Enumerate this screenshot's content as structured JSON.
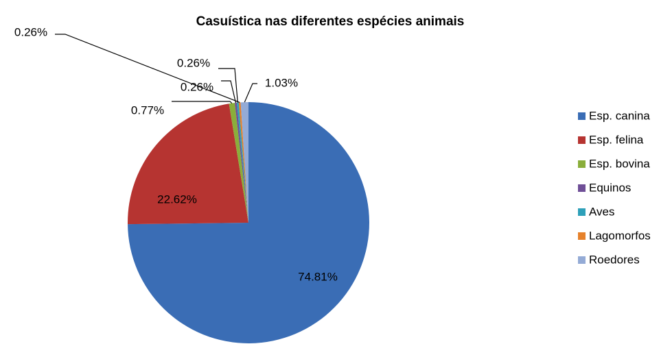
{
  "chart_data": {
    "type": "pie",
    "title": "Casuística nas diferentes espécies animais",
    "categories": [
      "Esp. canina",
      "Esp. felina",
      "Esp. bovina",
      "Equinos",
      "Aves",
      "Lagomorfos",
      "Roedores"
    ],
    "values": [
      74.81,
      22.62,
      0.77,
      0.26,
      0.26,
      0.26,
      1.03
    ],
    "value_labels": [
      "74.81%",
      "22.62%",
      "0.77%",
      "0.26%",
      "0.26%",
      "0.26%",
      "1.03%"
    ],
    "colors": [
      "#3a6db5",
      "#b63431",
      "#8aae3b",
      "#6f4f97",
      "#2ea0b9",
      "#e6822c",
      "#94abd6"
    ],
    "legend": "right"
  }
}
